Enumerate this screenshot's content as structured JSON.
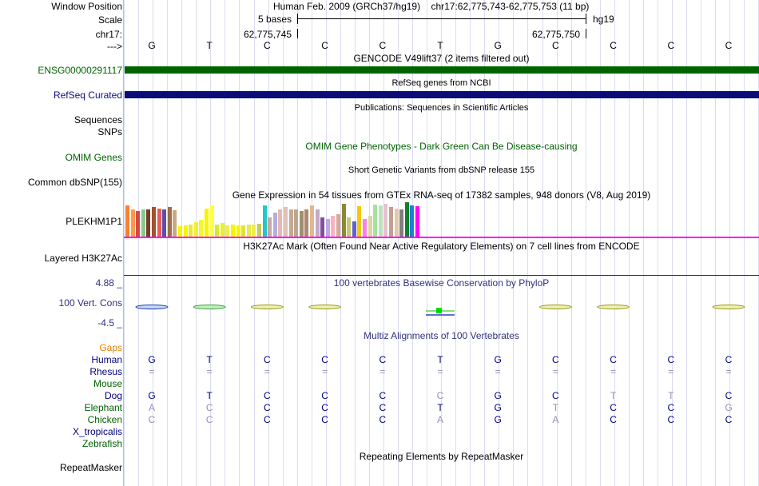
{
  "labels": {
    "window_position": "Window Position",
    "scale": "Scale",
    "chrom": "chr17:",
    "strand": "--->",
    "gencode": "ENSG00000291117",
    "refseq": "RefSeq Curated",
    "sequences": "Sequences",
    "snps": "SNPs",
    "omim": "OMIM Genes",
    "dbsnp": "Common dbSNP(155)",
    "gtex": "PLEKHM1P1",
    "h3k27ac": "Layered H3K27Ac",
    "cons": "100 Vert. Cons",
    "cons_max": "4.88 _",
    "cons_min": "-4.5 _",
    "gaps": "Gaps",
    "repeatmasker": "RepeatMasker"
  },
  "ruler": {
    "assembly": "Human Feb. 2009 (GRCh37/hg19)",
    "position": "chr17:62,775,743-62,775,753 (11 bp)",
    "scale_text": "5 bases",
    "db": "hg19",
    "coord_left": "62,775,745",
    "coord_right": "62,775,750"
  },
  "sequence": [
    "G",
    "T",
    "C",
    "C",
    "C",
    "T",
    "G",
    "C",
    "C",
    "C",
    "C"
  ],
  "tracks": {
    "gencode_title": "GENCODE V49lift37 (2 items filtered out)",
    "refseq_title": "RefSeq genes from NCBI",
    "publications_title": "Publications: Sequences in Scientific Articles",
    "omim_title": "OMIM Gene Phenotypes - Dark Green Can Be Disease-causing",
    "dbsnp_title": "Short Genetic Variants from dbSNP release 155",
    "gtex_title": "Gene Expression in 54 tissues from GTEx RNA-seq of 17382 samples, 948 donors (V8, Aug 2019)",
    "h3k27ac_title": "H3K27Ac Mark (Often Found Near Active Regulatory Elements) on 7 cell lines from ENCODE",
    "cons_title": "100 vertebrates Basewise Conservation by PhyloP",
    "multiz_title": "Multiz Alignments of 100 Vertebrates",
    "repeat_title": "Repeating Elements by RepeatMasker"
  },
  "gtex_expression": [
    0.9,
    0.8,
    0.75,
    0.8,
    0.78,
    0.85,
    0.82,
    0.78,
    0.85,
    0.76,
    0.3,
    0.32,
    0.34,
    0.42,
    0.48,
    0.82,
    0.9,
    0.35,
    0.4,
    0.32,
    0.36,
    0.33,
    0.32,
    0.34,
    0.35,
    0.38,
    0.9,
    0.55,
    0.7,
    0.78,
    0.85,
    0.8,
    0.78,
    0.75,
    0.8,
    0.9,
    0.78,
    0.55,
    0.5,
    0.6,
    0.65,
    0.95,
    0.55,
    0.45,
    0.88,
    0.5,
    0.6,
    0.92,
    0.9,
    0.95,
    0.85,
    0.82,
    0.8,
    1.0,
    0.9,
    0.88
  ],
  "gtex_colors": [
    "#ff7f2a",
    "#ff9a4a",
    "#d14a4a",
    "#88c88a",
    "#7a3a2a",
    "#a0522d",
    "#ee5a5a",
    "#5a4fb0",
    "#9a7050",
    "#c8a882",
    "#f5f500",
    "#f5f500",
    "#e8e830",
    "#f0f030",
    "#f5f530",
    "#f5f500",
    "#ffff40",
    "#d8e830",
    "#e8f030",
    "#f0f040",
    "#f5f500",
    "#f5f500",
    "#e0e040",
    "#e8e850",
    "#f0f040",
    "#c8c860",
    "#20c8c8",
    "#c8a8a0",
    "#b0b0e0",
    "#e8b8b0",
    "#e0c0b8",
    "#c8a890",
    "#b8a890",
    "#a09070",
    "#b08870",
    "#e0b890",
    "#c8a8c8",
    "#8050a0",
    "#c0a8e0",
    "#ffb0c0",
    "#d8a8a0",
    "#8a8a30",
    "#c8c870",
    "#6060d0",
    "#f5c800",
    "#ff80e0",
    "#d8d8a0",
    "#a8e0a0",
    "#c0e0c0",
    "#e8c0d0",
    "#c0a090",
    "#e0c8b0",
    "#808080",
    "#108030",
    "#2080d0",
    "#ff00ff"
  ],
  "conservation": {
    "segments": [
      {
        "base": 1,
        "color": "#2040a0",
        "fill": "#c8d8f8",
        "score": "positive"
      },
      {
        "base": 2,
        "color": "#40a040",
        "fill": "#c0f0c0",
        "score": "positive"
      },
      {
        "base": 3,
        "color": "#9a9a20",
        "fill": "#f0f0b0",
        "score": "positive"
      },
      {
        "base": 4,
        "color": "#9a9a20",
        "fill": "#f0f0b0",
        "score": "positive"
      },
      {
        "base": 6,
        "color": "#00c000",
        "fill": "#00e000",
        "score": "mixed"
      },
      {
        "base": 8,
        "color": "#9a9a20",
        "fill": "#f0f0b0",
        "score": "positive"
      },
      {
        "base": 9,
        "color": "#9a9a20",
        "fill": "#f0f0b0",
        "score": "positive"
      },
      {
        "base": 11,
        "color": "#9a9a20",
        "fill": "#f0f0b0",
        "score": "positive"
      }
    ]
  },
  "multiz": [
    {
      "name": "Human",
      "color": "#000080",
      "bases": [
        "G",
        "T",
        "C",
        "C",
        "C",
        "T",
        "G",
        "C",
        "C",
        "C",
        "C"
      ],
      "dim": [
        false,
        false,
        false,
        false,
        false,
        false,
        false,
        false,
        false,
        false,
        false
      ]
    },
    {
      "name": "Rhesus",
      "color": "#000080",
      "bases": [
        "=",
        "=",
        "=",
        "=",
        "=",
        "=",
        "=",
        "=",
        "=",
        "=",
        "="
      ],
      "dim": [
        true,
        true,
        true,
        true,
        true,
        true,
        true,
        true,
        true,
        true,
        true
      ]
    },
    {
      "name": "Mouse",
      "color": "#006000",
      "bases": [],
      "dim": []
    },
    {
      "name": "Dog",
      "color": "#000080",
      "bases": [
        "G",
        "T",
        "C",
        "C",
        "C",
        "C",
        "G",
        "C",
        "T",
        "T",
        "C"
      ],
      "dim": [
        false,
        false,
        false,
        false,
        false,
        true,
        false,
        false,
        true,
        true,
        false
      ]
    },
    {
      "name": "Elephant",
      "color": "#006000",
      "bases": [
        "A",
        "C",
        "C",
        "C",
        "C",
        "T",
        "G",
        "T",
        "C",
        "C",
        "G"
      ],
      "dim": [
        true,
        true,
        false,
        false,
        false,
        false,
        false,
        true,
        false,
        false,
        true
      ]
    },
    {
      "name": "Chicken",
      "color": "#006000",
      "bases": [
        "C",
        "C",
        "C",
        "C",
        "C",
        "A",
        "G",
        "A",
        "C",
        "C",
        "C"
      ],
      "dim": [
        true,
        true,
        false,
        false,
        false,
        true,
        false,
        true,
        false,
        false,
        false
      ]
    },
    {
      "name": "X_tropicalis",
      "color": "#000080",
      "bases": [],
      "dim": []
    },
    {
      "name": "Zebrafish",
      "color": "#006000",
      "bases": [],
      "dim": []
    }
  ],
  "colors": {
    "gencode": "#006400",
    "refseq": "#0c0c78",
    "omim": "#006400",
    "gaps": "#e08000",
    "cons_label": "#303080",
    "gtex_baseline": "#ff00ff",
    "h3k27ac_line": "#203070",
    "dim_base": "#9090c0"
  }
}
